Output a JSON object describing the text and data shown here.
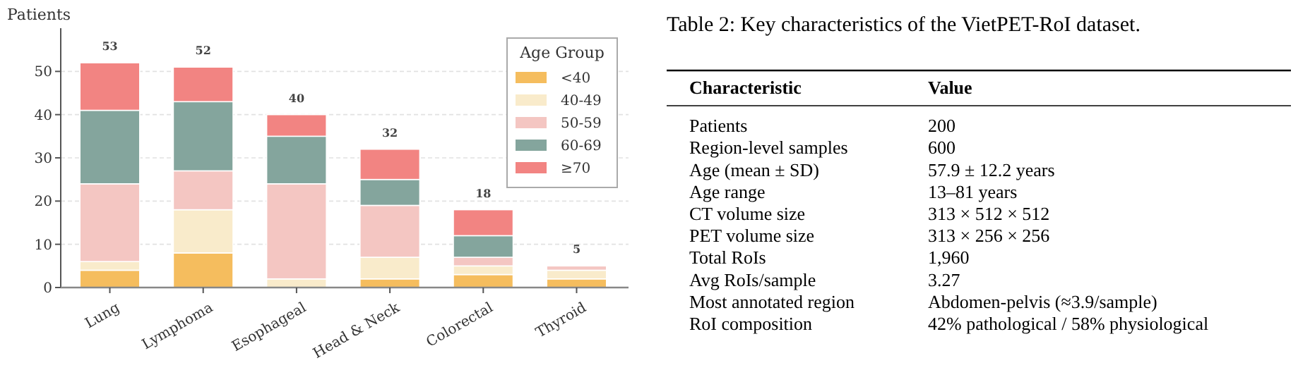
{
  "chart_data": [
    {
      "type": "bar",
      "stacked": true,
      "ylabel": "Patients",
      "legend_title": "Age Group",
      "legend": "top right",
      "grid": "y",
      "categories": [
        "Lung",
        "Lymphoma",
        "Esophageal",
        "Head & Neck",
        "Colorectal",
        "Thyroid"
      ],
      "series": [
        {
          "name": "<40",
          "color": "#f5bd5e",
          "values": [
            4,
            8,
            0,
            2,
            3,
            2
          ]
        },
        {
          "name": "40-49",
          "color": "#f9ebcb",
          "values": [
            2,
            10,
            2,
            5,
            2,
            2
          ]
        },
        {
          "name": "50-59",
          "color": "#f4c6c2",
          "values": [
            18,
            9,
            22,
            12,
            2,
            1
          ]
        },
        {
          "name": "60-69",
          "color": "#84a59d",
          "values": [
            17,
            16,
            11,
            6,
            5,
            0
          ]
        },
        {
          "name": "≥70",
          "color": "#f28482",
          "values": [
            11,
            8,
            5,
            7,
            6,
            0
          ]
        }
      ],
      "totals": [
        "53",
        "52",
        "40",
        "32",
        "18",
        "5"
      ],
      "ylim": [
        0,
        60
      ],
      "yticks": [
        0,
        10,
        20,
        30,
        40,
        50
      ]
    },
    {
      "type": "other",
      "title": "Table 2: Key characteristics of the VietPET-RoI dataset.",
      "annotations": [
        "Characteristic",
        "Value",
        "Patients",
        "200",
        "Region-level samples",
        "600",
        "Age (mean ± SD)",
        "57.9 ± 12.2 years",
        "Age range",
        "13–81 years",
        "CT volume size",
        "313 × 512 × 512",
        "PET volume size",
        "313 × 256 × 256",
        "Total RoIs",
        "1,960",
        "Avg RoIs/sample",
        "3.27",
        "Most annotated region",
        "Abdomen-pelvis (≈3.9/sample)",
        "RoI composition",
        "42% pathological / 58% physiological"
      ]
    }
  ]
}
